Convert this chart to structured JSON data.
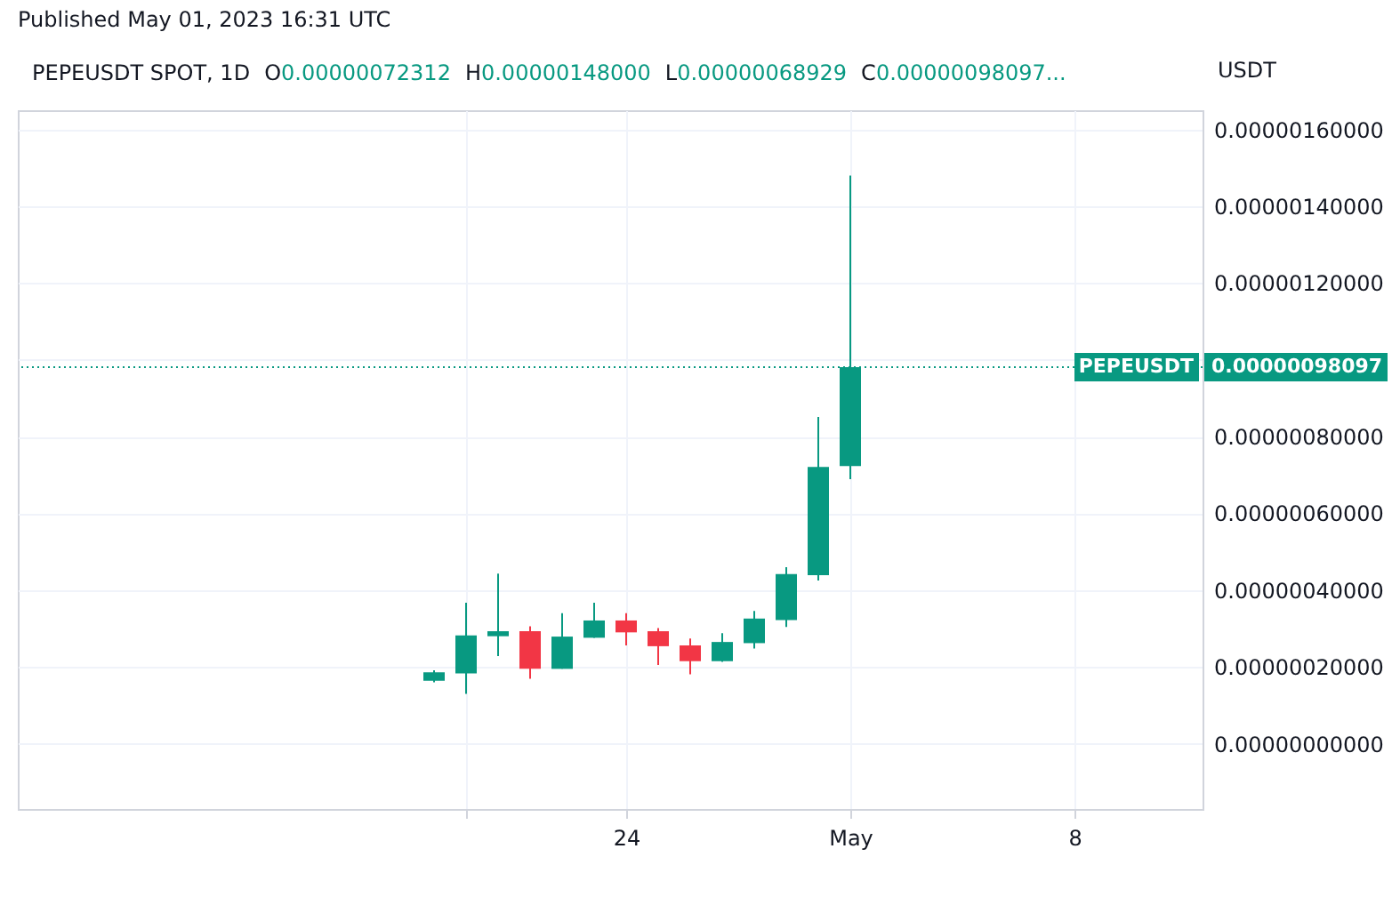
{
  "chart_data": {
    "type": "candlestick",
    "title": "PEPEUSDT SPOT, 1D",
    "ylabel": "USDT",
    "annotations": [
      "Published May 01, 2023 16:31 UTC",
      "O0.00000072312",
      "H0.00000148000",
      "L0.00000068929",
      "C0.00000098097...",
      "0.00000098097"
    ],
    "x": [
      "--04-18",
      "--04-19",
      "--04-20",
      "--04-21",
      "--04-22",
      "--04-23",
      "--04-24",
      "--04-25",
      "--04-26",
      "--04-27",
      "--04-28",
      "--04-29",
      "--04-30",
      "--05-01"
    ],
    "ohlc": [
      [
        1.64e-07,
        1.91e-07,
        1.6e-07,
        1.86e-07
      ],
      [
        1.83e-07,
        3.67e-07,
        1.3e-07,
        2.82e-07
      ],
      [
        2.8e-07,
        4.43e-07,
        2.28e-07,
        2.93e-07
      ],
      [
        2.93e-07,
        3.06e-07,
        1.69e-07,
        1.95e-07
      ],
      [
        1.95e-07,
        3.4e-07,
        1.95e-07,
        2.79e-07
      ],
      [
        2.76e-07,
        3.67e-07,
        2.76e-07,
        3.21e-07
      ],
      [
        3.21e-07,
        3.4e-07,
        2.56e-07,
        2.9e-07
      ],
      [
        2.93e-07,
        3.01e-07,
        2.05e-07,
        2.54e-07
      ],
      [
        2.56e-07,
        2.74e-07,
        1.81e-07,
        2.15e-07
      ],
      [
        2.15e-07,
        2.88e-07,
        2.13e-07,
        2.65e-07
      ],
      [
        2.62e-07,
        3.46e-07,
        2.48e-07,
        3.26e-07
      ],
      [
        3.22e-07,
        4.6e-07,
        3.04e-07,
        4.42e-07
      ],
      [
        4.39e-07,
        8.51e-07,
        4.25e-07,
        7.21e-07
      ],
      [
        7.2312e-07,
        1.48e-06,
        6.8929e-07,
        9.8097e-07
      ]
    ],
    "colors": [
      "#089981",
      "#089981",
      "#089981",
      "#f23645",
      "#089981",
      "#089981",
      "#f23645",
      "#f23645",
      "#f23645",
      "#089981",
      "#089981",
      "#089981",
      "#089981",
      "#089981"
    ],
    "xlim": [
      "--04-05",
      "--05-12"
    ],
    "xticks": [
      {
        "value": "--04-19",
        "label": null
      },
      {
        "value": "--04-24",
        "label": "24"
      },
      {
        "value": "--05-01",
        "label": "May"
      },
      {
        "value": "--05-08",
        "label": "8"
      }
    ],
    "ylim": [
      -1.7e-07,
      1.65e-06
    ],
    "yticks": [
      {
        "value": 0,
        "label": "0.00000000000"
      },
      {
        "value": 2e-07,
        "label": "0.00000020000"
      },
      {
        "value": 4e-07,
        "label": "0.00000040000"
      },
      {
        "value": 6e-07,
        "label": "0.00000060000"
      },
      {
        "value": 8e-07,
        "label": "0.00000080000"
      },
      {
        "value": 1e-06,
        "label": null
      },
      {
        "value": 1.2e-06,
        "label": "0.00000120000"
      },
      {
        "value": 1.4e-06,
        "label": "0.00000140000"
      },
      {
        "value": 1.6e-06,
        "label": "0.00000160000"
      }
    ],
    "ref_lines": [
      {
        "axis": "y",
        "value": 9.8097e-07,
        "label": "PEPEUSDT",
        "color": "#089981",
        "line_style": "dotted"
      }
    ],
    "grid": true
  }
}
